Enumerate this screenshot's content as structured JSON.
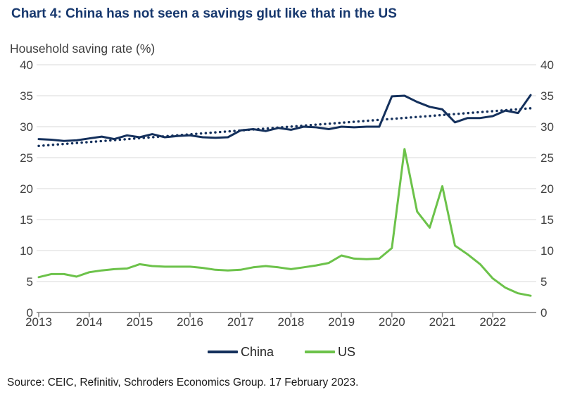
{
  "header": {
    "title": "Chart 4: China has not seen a savings glut like that in the US",
    "subtitle": "Household saving rate (%)"
  },
  "source": "Source: CEIC, Refinitiv, Schroders Economics Group. 17 February 2023.",
  "legend": {
    "items": [
      {
        "label": "China",
        "color": "#14305c"
      },
      {
        "label": "US",
        "color": "#6cc24a"
      }
    ]
  },
  "chart_data": {
    "type": "line",
    "title": "Chart 4: China has not seen a savings glut like that in the US",
    "ylabel": "Household saving rate (%)",
    "xlabel": "",
    "ylim": [
      0,
      40
    ],
    "y_ticks": [
      0,
      5,
      10,
      15,
      20,
      25,
      30,
      35,
      40
    ],
    "y_axis_sides": "both",
    "grid": "horizontal",
    "legend_position": "bottom-center",
    "x_frequency": "quarterly",
    "x_tick_labels": [
      "2013",
      "2014",
      "2015",
      "2016",
      "2017",
      "2018",
      "2019",
      "2020",
      "2021",
      "2022"
    ],
    "x": [
      "2013 Q1",
      "2013 Q2",
      "2013 Q3",
      "2013 Q4",
      "2014 Q1",
      "2014 Q2",
      "2014 Q3",
      "2014 Q4",
      "2015 Q1",
      "2015 Q2",
      "2015 Q3",
      "2015 Q4",
      "2016 Q1",
      "2016 Q2",
      "2016 Q3",
      "2016 Q4",
      "2017 Q1",
      "2017 Q2",
      "2017 Q3",
      "2017 Q4",
      "2018 Q1",
      "2018 Q2",
      "2018 Q3",
      "2018 Q4",
      "2019 Q1",
      "2019 Q2",
      "2019 Q3",
      "2019 Q4",
      "2020 Q1",
      "2020 Q2",
      "2020 Q3",
      "2020 Q4",
      "2021 Q1",
      "2021 Q2",
      "2021 Q3",
      "2021 Q4",
      "2022 Q1",
      "2022 Q2",
      "2022 Q3",
      "2022 Q4"
    ],
    "series": [
      {
        "name": "China",
        "color": "#14305c",
        "style": "solid",
        "values": [
          28.0,
          27.9,
          27.7,
          27.8,
          28.1,
          28.4,
          28.0,
          28.6,
          28.3,
          28.8,
          28.3,
          28.5,
          28.6,
          28.3,
          28.2,
          28.3,
          29.4,
          29.6,
          29.3,
          29.8,
          29.5,
          30.0,
          29.9,
          29.6,
          30.0,
          29.9,
          30.0,
          30.0,
          34.9,
          35.0,
          34.0,
          33.2,
          32.8,
          30.7,
          31.4,
          31.4,
          31.7,
          32.6,
          32.2,
          35.1
        ]
      },
      {
        "name": "US",
        "color": "#6cc24a",
        "style": "solid",
        "values": [
          5.7,
          6.2,
          6.2,
          5.8,
          6.5,
          6.8,
          7.0,
          7.1,
          7.8,
          7.5,
          7.4,
          7.4,
          7.4,
          7.2,
          6.9,
          6.8,
          6.9,
          7.3,
          7.5,
          7.3,
          7.0,
          7.3,
          7.6,
          8.0,
          9.2,
          8.7,
          8.6,
          8.7,
          10.4,
          26.4,
          16.3,
          13.7,
          20.4,
          10.8,
          9.4,
          7.8,
          5.5,
          4.0,
          3.1,
          2.7
        ]
      }
    ],
    "trendline": {
      "name": "China linear trend",
      "color": "#14305c",
      "style": "dotted",
      "start": 26.9,
      "end": 33.0
    },
    "colors": {
      "grid": "#d9d9d9",
      "axis": "#7f7f7f",
      "tick_text": "#404040"
    }
  }
}
